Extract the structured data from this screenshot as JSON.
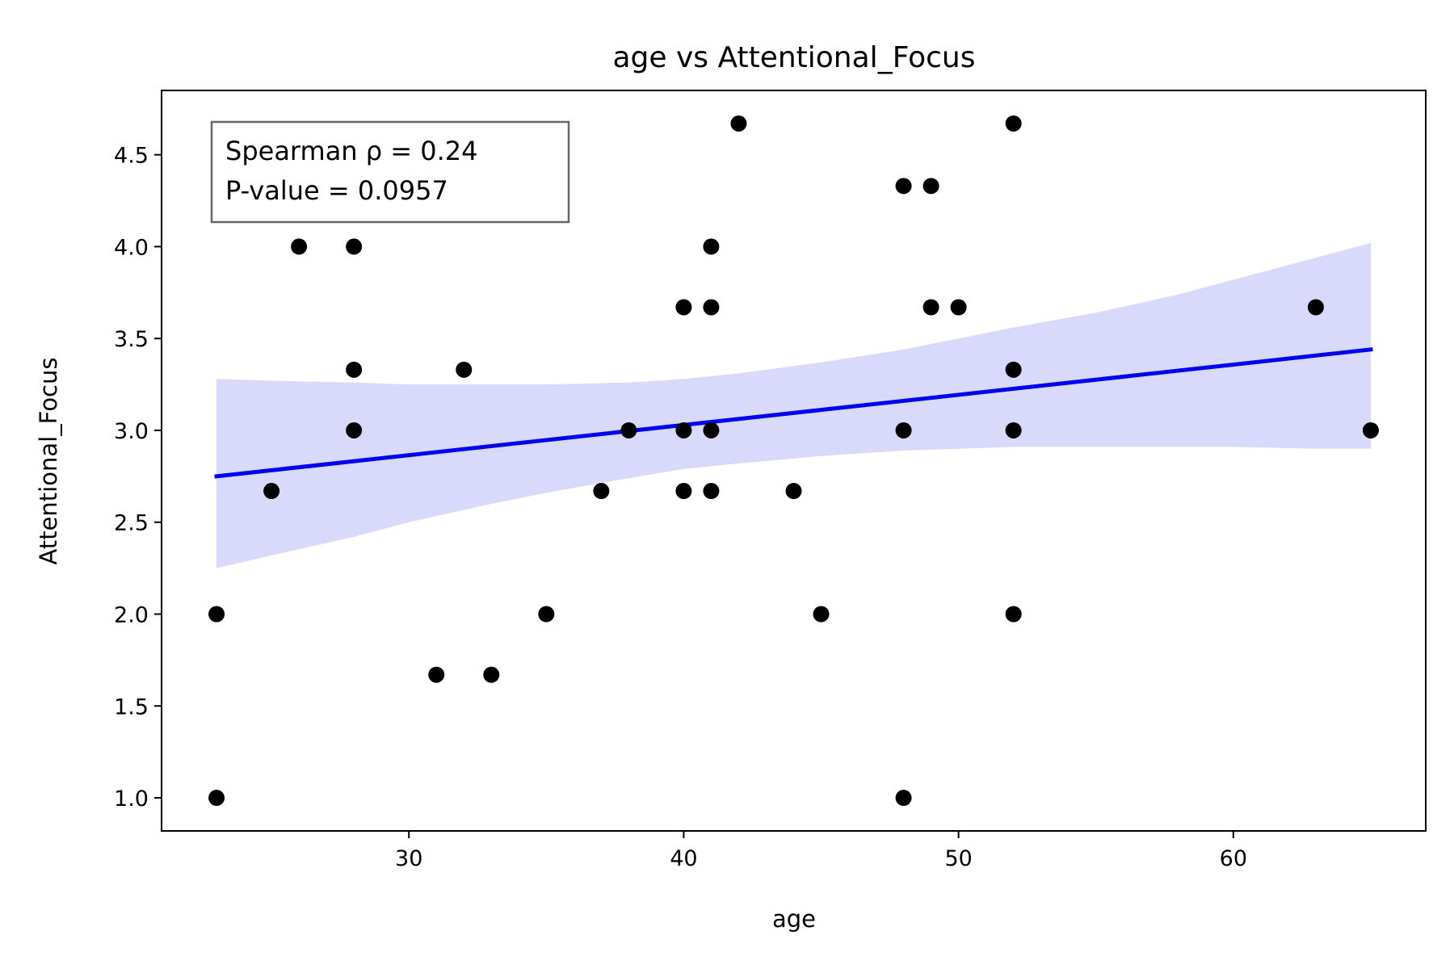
{
  "chart_data": {
    "type": "scatter",
    "title": "age vs Attentional_Focus",
    "xlabel": "age",
    "ylabel": "Attentional_Focus",
    "xlim": [
      21,
      67
    ],
    "ylim": [
      0.82,
      4.85
    ],
    "xticks": [
      30,
      40,
      50,
      60
    ],
    "yticks": [
      1.0,
      1.5,
      2.0,
      2.5,
      3.0,
      3.5,
      4.0,
      4.5
    ],
    "grid": false,
    "annotation": {
      "lines": [
        "Spearman ρ = 0.24",
        "P-value = 0.0957"
      ],
      "placement": "top-left"
    },
    "points": [
      {
        "x": 23,
        "y": 2.0
      },
      {
        "x": 23,
        "y": 1.0
      },
      {
        "x": 25,
        "y": 2.67
      },
      {
        "x": 26,
        "y": 4.0
      },
      {
        "x": 28,
        "y": 4.0
      },
      {
        "x": 28,
        "y": 3.33
      },
      {
        "x": 28,
        "y": 3.0
      },
      {
        "x": 31,
        "y": 1.67
      },
      {
        "x": 32,
        "y": 3.33
      },
      {
        "x": 33,
        "y": 1.67
      },
      {
        "x": 35,
        "y": 2.0
      },
      {
        "x": 37,
        "y": 2.67
      },
      {
        "x": 38,
        "y": 3.0
      },
      {
        "x": 40,
        "y": 3.67
      },
      {
        "x": 40,
        "y": 3.0
      },
      {
        "x": 40,
        "y": 2.67
      },
      {
        "x": 41,
        "y": 4.0
      },
      {
        "x": 41,
        "y": 3.67
      },
      {
        "x": 41,
        "y": 3.0
      },
      {
        "x": 41,
        "y": 2.67
      },
      {
        "x": 42,
        "y": 4.67
      },
      {
        "x": 44,
        "y": 2.67
      },
      {
        "x": 45,
        "y": 2.0
      },
      {
        "x": 48,
        "y": 4.33
      },
      {
        "x": 48,
        "y": 3.0
      },
      {
        "x": 48,
        "y": 1.0
      },
      {
        "x": 49,
        "y": 4.33
      },
      {
        "x": 49,
        "y": 3.67
      },
      {
        "x": 50,
        "y": 3.67
      },
      {
        "x": 52,
        "y": 4.67
      },
      {
        "x": 52,
        "y": 3.33
      },
      {
        "x": 52,
        "y": 3.0
      },
      {
        "x": 52,
        "y": 2.0
      },
      {
        "x": 63,
        "y": 3.67
      },
      {
        "x": 65,
        "y": 3.0
      }
    ],
    "regression_line": {
      "x": [
        23,
        65
      ],
      "y": [
        2.75,
        3.44
      ]
    },
    "confidence_band": {
      "x": [
        23,
        25,
        28,
        30,
        33,
        35,
        38,
        40,
        42,
        45,
        48,
        50,
        52,
        55,
        58,
        60,
        63,
        65
      ],
      "lower": [
        2.25,
        2.32,
        2.42,
        2.5,
        2.6,
        2.66,
        2.74,
        2.79,
        2.82,
        2.86,
        2.89,
        2.9,
        2.91,
        2.91,
        2.91,
        2.91,
        2.9,
        2.9
      ],
      "upper": [
        3.28,
        3.27,
        3.26,
        3.25,
        3.25,
        3.25,
        3.26,
        3.28,
        3.31,
        3.37,
        3.44,
        3.5,
        3.56,
        3.64,
        3.74,
        3.82,
        3.94,
        4.02
      ]
    },
    "colors": {
      "points": "#000000",
      "line": "#0000ee",
      "band": "#d9d9fb",
      "annotation_border": "#666666"
    }
  }
}
